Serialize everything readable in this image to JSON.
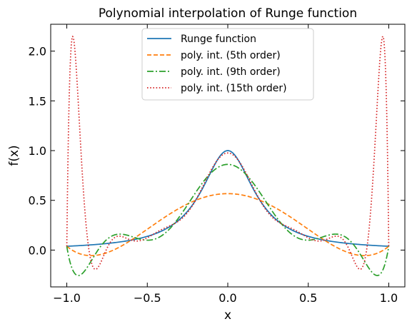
{
  "chart_data": {
    "type": "line",
    "title": "Polynomial interpolation of Runge function",
    "xlabel": "x",
    "ylabel": "f(x)",
    "xlim": [
      -1.1,
      1.1
    ],
    "ylim": [
      -0.37,
      2.27
    ],
    "xticks": [
      -1.0,
      -0.5,
      0.0,
      0.5,
      1.0
    ],
    "xtick_labels": [
      "−1.0",
      "−0.5",
      "0.0",
      "0.5",
      "1.0"
    ],
    "yticks": [
      0.0,
      0.5,
      1.0,
      1.5,
      2.0
    ],
    "ytick_labels": [
      "0.0",
      "0.5",
      "1.0",
      "1.5",
      "2.0"
    ],
    "grid": false,
    "legend_position": "top-center",
    "series": [
      {
        "name": "Runge function",
        "color": "#1f77b4",
        "style": "solid",
        "function": "runge"
      },
      {
        "name": "poly. int. (5th order)",
        "color": "#ff7f0e",
        "style": "dashed",
        "function": "interp",
        "nodes": 6
      },
      {
        "name": "poly. int. (9th order)",
        "color": "#2ca02c",
        "style": "dashdot",
        "function": "interp",
        "nodes": 10
      },
      {
        "name": "poly. int. (15th order)",
        "color": "#d62728",
        "style": "dotted",
        "function": "interp",
        "nodes": 16
      }
    ]
  }
}
